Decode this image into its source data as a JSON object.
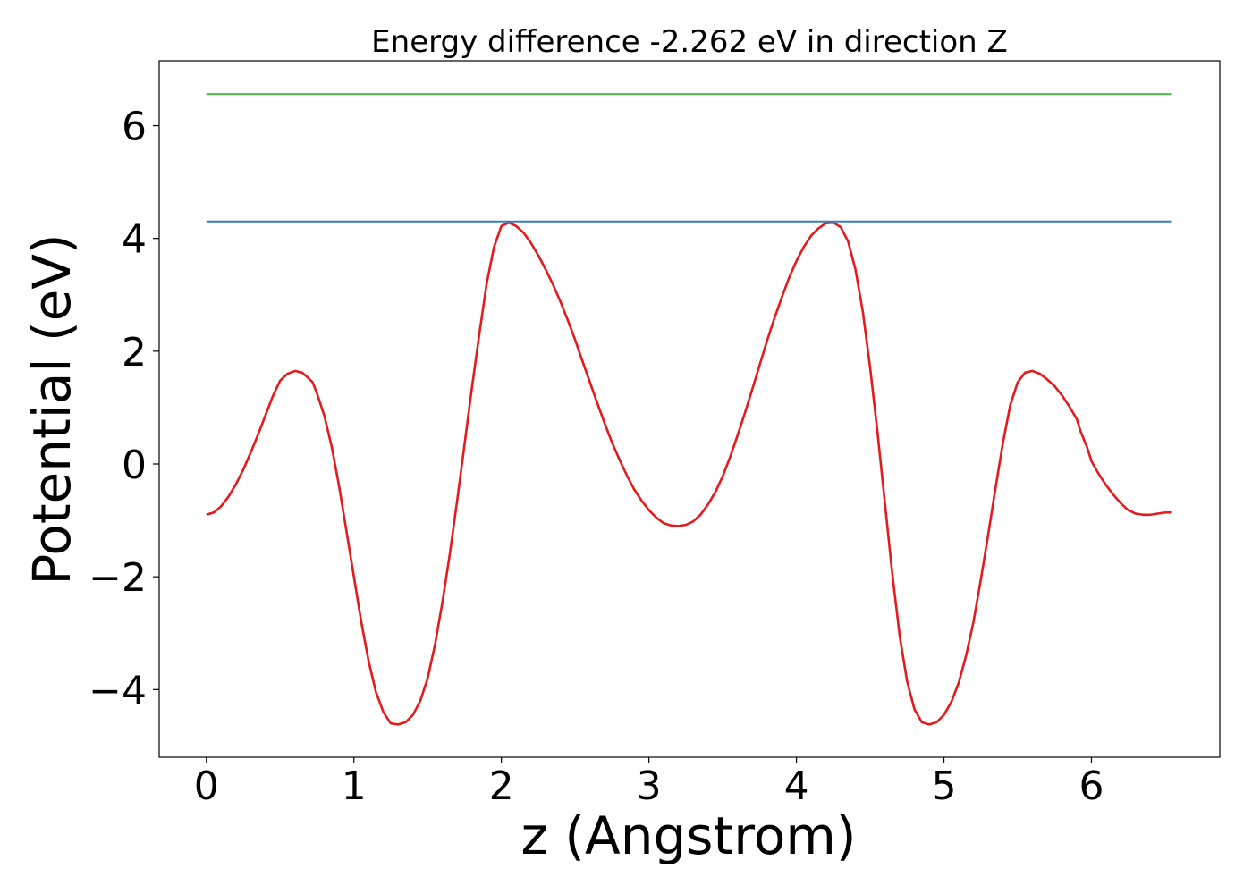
{
  "chart_data": {
    "type": "line",
    "title": "Energy difference -2.262 eV in direction Z",
    "xlabel": "z (Angstrom)",
    "ylabel": "Potential (eV)",
    "xlim": [
      -0.32,
      6.87
    ],
    "ylim": [
      -5.2,
      7.15
    ],
    "xticks": [
      0,
      1,
      2,
      3,
      4,
      5,
      6
    ],
    "xtick_labels": [
      "0",
      "1",
      "2",
      "3",
      "4",
      "5",
      "6"
    ],
    "yticks": [
      -4,
      -2,
      0,
      2,
      4,
      6
    ],
    "ytick_labels": [
      "−4",
      "−2",
      "0",
      "2",
      "4",
      "6"
    ],
    "grid": false,
    "series": [
      {
        "color": "#e41a1c",
        "x": [
          0.0,
          0.05,
          0.1,
          0.15,
          0.2,
          0.25,
          0.3,
          0.35,
          0.4,
          0.45,
          0.5,
          0.55,
          0.6,
          0.65,
          0.68,
          0.72,
          0.75,
          0.8,
          0.85,
          0.9,
          0.95,
          1.0,
          1.05,
          1.1,
          1.15,
          1.2,
          1.25,
          1.3,
          1.35,
          1.4,
          1.45,
          1.5,
          1.55,
          1.6,
          1.65,
          1.7,
          1.75,
          1.8,
          1.85,
          1.9,
          1.95,
          2.0,
          2.05,
          2.1,
          2.15,
          2.2,
          2.25,
          2.3,
          2.35,
          2.4,
          2.45,
          2.5,
          2.55,
          2.6,
          2.65,
          2.7,
          2.75,
          2.8,
          2.85,
          2.9,
          2.95,
          3.0,
          3.05,
          3.1,
          3.15,
          3.2,
          3.25,
          3.3,
          3.35,
          3.4,
          3.45,
          3.5,
          3.55,
          3.6,
          3.65,
          3.7,
          3.75,
          3.8,
          3.85,
          3.9,
          3.95,
          4.0,
          4.05,
          4.1,
          4.15,
          4.2,
          4.25,
          4.3,
          4.35,
          4.4,
          4.45,
          4.5,
          4.55,
          4.6,
          4.65,
          4.7,
          4.75,
          4.8,
          4.85,
          4.9,
          4.95,
          5.0,
          5.05,
          5.1,
          5.15,
          5.2,
          5.25,
          5.3,
          5.35,
          5.4,
          5.45,
          5.5,
          5.55,
          5.6,
          5.65,
          5.7,
          5.75,
          5.8,
          5.85,
          5.9,
          5.93,
          5.97,
          6.0,
          6.05,
          6.1,
          6.15,
          6.2,
          6.25,
          6.3,
          6.35,
          6.4,
          6.45,
          6.5,
          6.54
        ],
        "y": [
          -0.9,
          -0.86,
          -0.75,
          -0.58,
          -0.36,
          -0.1,
          0.2,
          0.52,
          0.86,
          1.2,
          1.48,
          1.6,
          1.65,
          1.62,
          1.55,
          1.45,
          1.25,
          0.85,
          0.3,
          -0.4,
          -1.2,
          -2.0,
          -2.8,
          -3.5,
          -4.05,
          -4.4,
          -4.6,
          -4.62,
          -4.58,
          -4.45,
          -4.2,
          -3.8,
          -3.2,
          -2.45,
          -1.6,
          -0.65,
          0.35,
          1.35,
          2.3,
          3.2,
          3.85,
          4.22,
          4.28,
          4.22,
          4.1,
          3.92,
          3.7,
          3.45,
          3.18,
          2.88,
          2.55,
          2.2,
          1.82,
          1.45,
          1.08,
          0.72,
          0.38,
          0.08,
          -0.2,
          -0.45,
          -0.65,
          -0.82,
          -0.95,
          -1.05,
          -1.09,
          -1.1,
          -1.08,
          -1.02,
          -0.9,
          -0.72,
          -0.5,
          -0.22,
          0.12,
          0.5,
          0.9,
          1.32,
          1.75,
          2.18,
          2.58,
          2.95,
          3.3,
          3.6,
          3.85,
          4.05,
          4.18,
          4.27,
          4.28,
          4.2,
          3.95,
          3.45,
          2.7,
          1.7,
          0.55,
          -0.7,
          -1.95,
          -3.05,
          -3.85,
          -4.35,
          -4.58,
          -4.62,
          -4.58,
          -4.45,
          -4.22,
          -3.88,
          -3.4,
          -2.8,
          -2.05,
          -1.25,
          -0.42,
          0.38,
          1.05,
          1.45,
          1.62,
          1.65,
          1.6,
          1.5,
          1.38,
          1.22,
          1.02,
          0.8,
          0.55,
          0.3,
          0.05,
          -0.18,
          -0.38,
          -0.55,
          -0.7,
          -0.82,
          -0.88,
          -0.9,
          -0.9,
          -0.88,
          -0.86,
          -0.86
        ]
      },
      {
        "color": "#377eb8",
        "x": [
          0.0,
          6.54
        ],
        "y": [
          4.3,
          4.3
        ]
      },
      {
        "color": "#4daf4a",
        "x": [
          0.0,
          6.54
        ],
        "y": [
          6.56,
          6.56
        ]
      }
    ]
  }
}
